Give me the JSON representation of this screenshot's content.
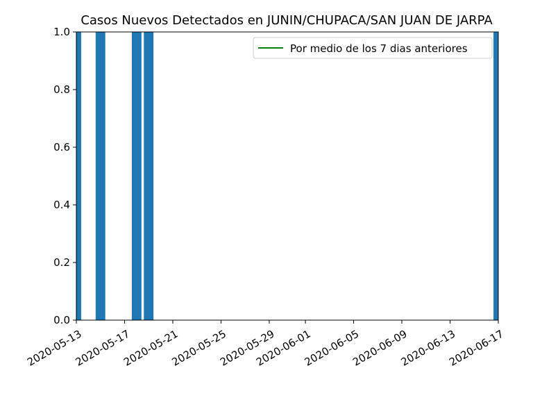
{
  "chart_data": {
    "type": "bar",
    "title": "Casos Nuevos Detectados en JUNIN/CHUPACA/SAN JUAN DE JARPA",
    "xlabel": "",
    "ylabel": "",
    "x_axis": "date",
    "xlim": [
      "2020-05-13",
      "2020-06-17"
    ],
    "ylim": [
      0,
      1
    ],
    "x_ticks": [
      "2020-05-13",
      "2020-05-17",
      "2020-05-21",
      "2020-05-25",
      "2020-05-29",
      "2020-06-01",
      "2020-06-05",
      "2020-06-09",
      "2020-06-13",
      "2020-06-17"
    ],
    "y_ticks": [
      "0.0",
      "0.2",
      "0.4",
      "0.6",
      "0.8",
      "1.0"
    ],
    "bars": [
      {
        "date": "2020-05-13",
        "value": 1
      },
      {
        "date": "2020-05-15",
        "value": 1
      },
      {
        "date": "2020-05-18",
        "value": 1
      },
      {
        "date": "2020-05-19",
        "value": 1
      },
      {
        "date": "2020-06-17",
        "value": 1
      }
    ],
    "series": [
      {
        "name": "Por medio de los 7 dias anteriores",
        "type": "line",
        "color": "#008000",
        "values": []
      }
    ],
    "bar_color": "#1f77b4",
    "legend": {
      "placement": "top-right",
      "entries": [
        "Por medio de los 7 dias anteriores"
      ]
    },
    "grid": false
  }
}
